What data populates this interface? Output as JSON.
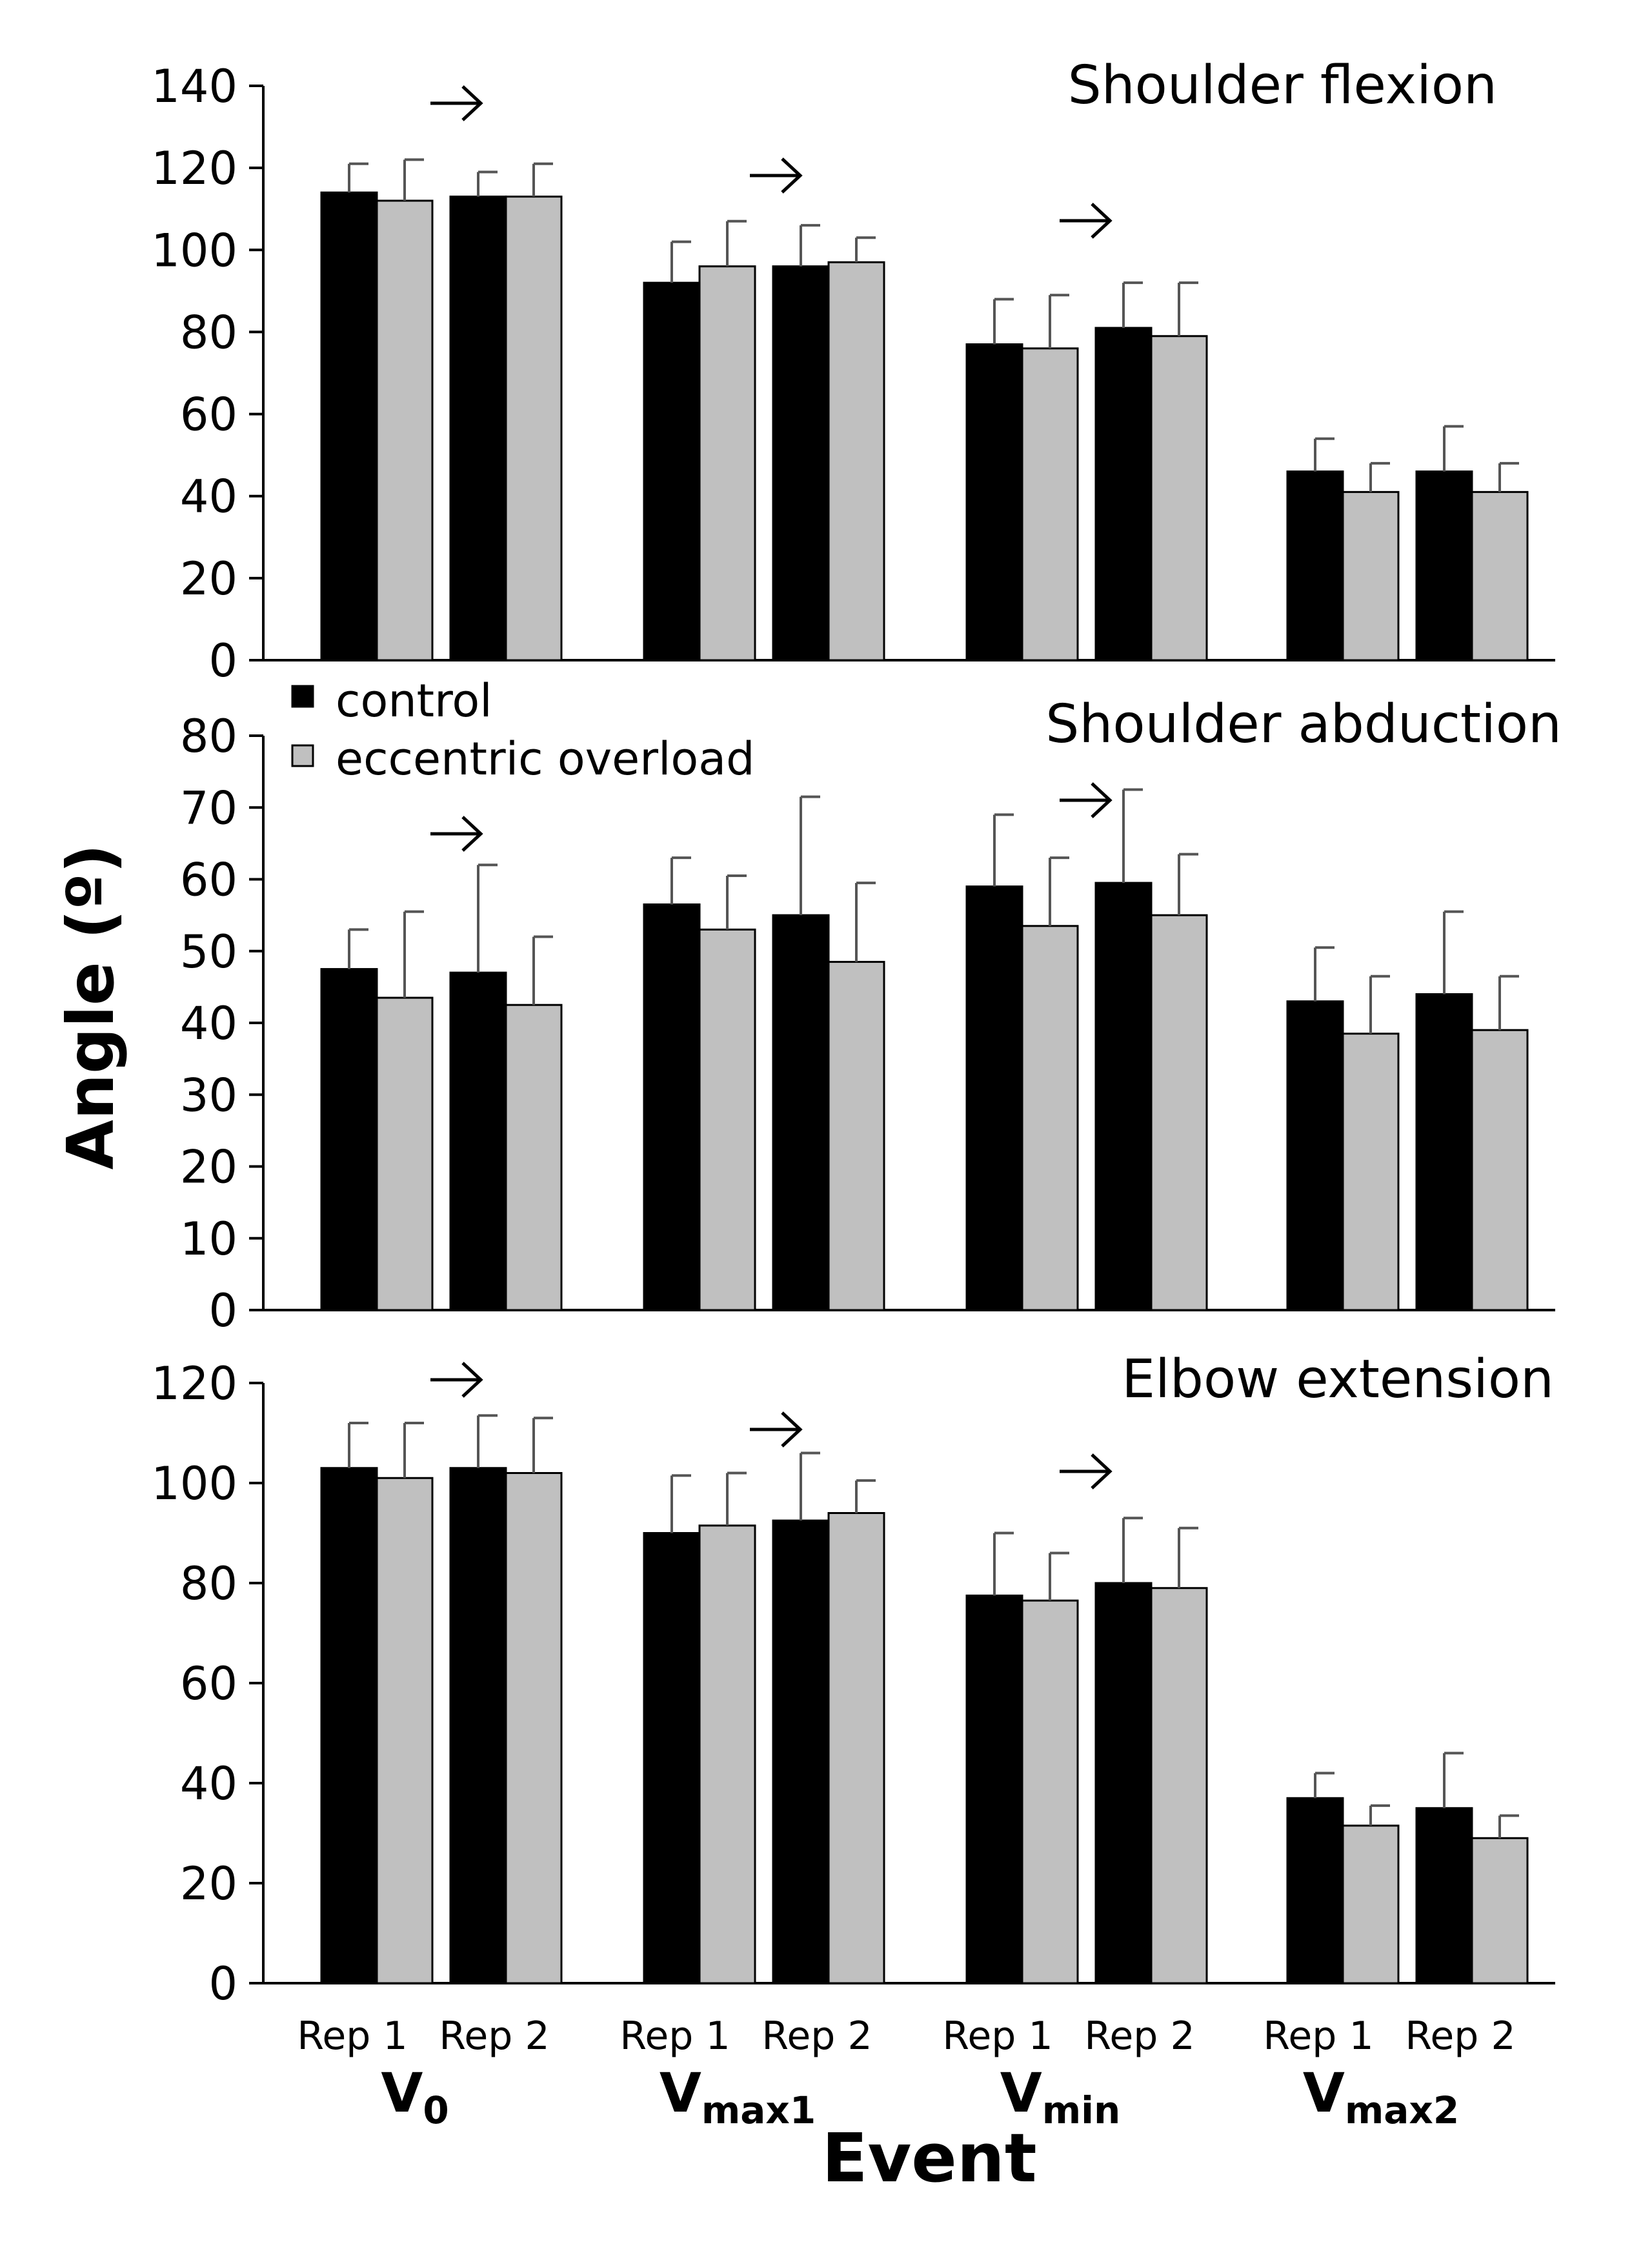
{
  "chart_data": [
    {
      "type": "bar",
      "title": "Shoulder flexion",
      "ylim": [
        0,
        140
      ],
      "yticks": [
        "0",
        "20",
        "40",
        "60",
        "80",
        "100",
        "120",
        "140"
      ],
      "categories": [
        "V0 Rep 1",
        "V0 Rep 2",
        "Vmax1 Rep 1",
        "Vmax1 Rep 2",
        "Vmin Rep 1",
        "Vmin Rep 2",
        "Vmax2 Rep 1",
        "Vmax2 Rep 2"
      ],
      "series": [
        {
          "name": "control",
          "values": [
            114,
            113,
            92,
            96,
            77,
            81,
            46,
            46
          ],
          "errors": [
            7,
            6,
            10,
            10,
            11,
            11,
            8,
            11
          ]
        },
        {
          "name": "eccentric overload",
          "values": [
            112,
            113,
            96,
            97,
            76,
            79,
            41,
            41
          ],
          "errors": [
            10,
            8,
            11,
            6,
            13,
            13,
            7,
            7
          ]
        }
      ],
      "arrows": [
        "V0",
        "Vmax1",
        "Vmin"
      ]
    },
    {
      "type": "bar",
      "title": "Shoulder abduction",
      "ylim": [
        0,
        80
      ],
      "yticks": [
        "0",
        "10",
        "20",
        "30",
        "40",
        "50",
        "60",
        "70",
        "80"
      ],
      "categories": [
        "V0 Rep 1",
        "V0 Rep 2",
        "Vmax1 Rep 1",
        "Vmax1 Rep 2",
        "Vmin Rep 1",
        "Vmin Rep 2",
        "Vmax2 Rep 1",
        "Vmax2 Rep 2"
      ],
      "series": [
        {
          "name": "control",
          "values": [
            47.5,
            47,
            56.5,
            55,
            59,
            59.5,
            43,
            44
          ],
          "errors": [
            5.5,
            15,
            6.5,
            16.5,
            10,
            13,
            7.5,
            11.5
          ]
        },
        {
          "name": "eccentric overload",
          "values": [
            43.5,
            42.5,
            53,
            48.5,
            53.5,
            55,
            38.5,
            39
          ],
          "errors": [
            12,
            9.5,
            7.5,
            11,
            9.5,
            8.5,
            8,
            7.5
          ]
        }
      ],
      "arrows": [
        "V0",
        "Vmin"
      ]
    },
    {
      "type": "bar",
      "title": "Elbow extension",
      "ylim": [
        0,
        120
      ],
      "yticks": [
        "0",
        "20",
        "40",
        "60",
        "80",
        "100",
        "120"
      ],
      "categories": [
        "V0 Rep 1",
        "V0 Rep 2",
        "Vmax1 Rep 1",
        "Vmax1 Rep 2",
        "Vmin Rep 1",
        "Vmin Rep 2",
        "Vmax2 Rep 1",
        "Vmax2 Rep 2"
      ],
      "series": [
        {
          "name": "control",
          "values": [
            103,
            103,
            90,
            92.5,
            77.5,
            80,
            37,
            35
          ],
          "errors": [
            9,
            10.5,
            11.5,
            13.5,
            12.5,
            13,
            5,
            11
          ]
        },
        {
          "name": "eccentric overload",
          "values": [
            101,
            102,
            91.5,
            94,
            76.5,
            79,
            31.5,
            29
          ],
          "errors": [
            11,
            11,
            10.5,
            6.5,
            9.5,
            12,
            4,
            4.5
          ]
        }
      ],
      "arrows": [
        "V0",
        "Vmax1",
        "Vmin"
      ]
    }
  ],
  "legend": {
    "control": "control",
    "eccentric_overload": "eccentric overload",
    "control_color": "#000000",
    "eccentric_color": "#c0c0c0",
    "placement": "top-left of middle panel"
  },
  "axes": {
    "ylabel": "Angle (º)",
    "xlabel": "Event",
    "rep_labels": [
      "Rep 1",
      "Rep 2"
    ],
    "events": [
      {
        "main": "V",
        "sub": "0"
      },
      {
        "main": "V",
        "sub": "max1"
      },
      {
        "main": "V",
        "sub": "min"
      },
      {
        "main": "V",
        "sub": "max2"
      }
    ]
  }
}
